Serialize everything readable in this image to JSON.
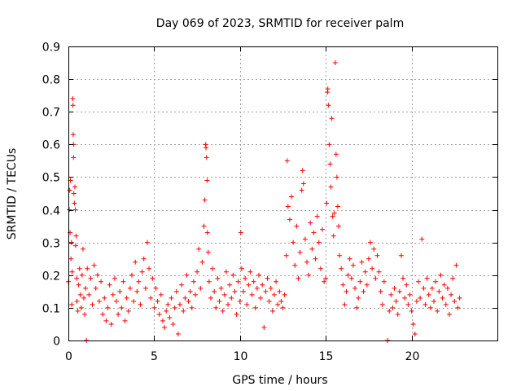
{
  "chart_data": {
    "type": "scatter",
    "title": "Day 069 of 2023, SRMTID for receiver palm",
    "xlabel": "GPS time / hours",
    "ylabel": "SRMTID / TECUs",
    "xlim": [
      0,
      25
    ],
    "ylim": [
      0,
      0.9
    ],
    "x_ticks": [
      {
        "value": 0,
        "label": "0"
      },
      {
        "value": 5,
        "label": "5"
      },
      {
        "value": 10,
        "label": "10"
      },
      {
        "value": 15,
        "label": "15"
      },
      {
        "value": 20,
        "label": "20"
      }
    ],
    "y_ticks": [
      {
        "value": 0,
        "label": "0"
      },
      {
        "value": 0.1,
        "label": "0.1"
      },
      {
        "value": 0.2,
        "label": "0.2"
      },
      {
        "value": 0.3,
        "label": "0.3"
      },
      {
        "value": 0.4,
        "label": "0.4"
      },
      {
        "value": 0.5,
        "label": "0.5"
      },
      {
        "value": 0.6,
        "label": "0.6"
      },
      {
        "value": 0.7,
        "label": "0.7"
      },
      {
        "value": 0.8,
        "label": "0.8"
      },
      {
        "value": 0.9,
        "label": "0.9"
      }
    ],
    "grid": true,
    "marker": "plus",
    "color": "#ff0000",
    "series": [
      {
        "name": "SRMTID",
        "points": [
          [
            0.0,
            0.18
          ],
          [
            0.05,
            0.4
          ],
          [
            0.08,
            0.46
          ],
          [
            0.1,
            0.33
          ],
          [
            0.12,
            0.49
          ],
          [
            0.15,
            0.25
          ],
          [
            0.18,
            0.3
          ],
          [
            0.2,
            0.11
          ],
          [
            0.22,
            0.21
          ],
          [
            0.25,
            0.74
          ],
          [
            0.27,
            0.72
          ],
          [
            0.28,
            0.63
          ],
          [
            0.3,
            0.6
          ],
          [
            0.3,
            0.56
          ],
          [
            0.32,
            0.45
          ],
          [
            0.35,
            0.42
          ],
          [
            0.38,
            0.47
          ],
          [
            0.4,
            0.4
          ],
          [
            0.42,
            0.29
          ],
          [
            0.45,
            0.32
          ],
          [
            0.48,
            0.19
          ],
          [
            0.5,
            0.12
          ],
          [
            0.55,
            0.09
          ],
          [
            0.6,
            0.17
          ],
          [
            0.65,
            0.22
          ],
          [
            0.7,
            0.14
          ],
          [
            0.75,
            0.1
          ],
          [
            0.8,
            0.2
          ],
          [
            0.85,
            0.28
          ],
          [
            0.9,
            0.13
          ],
          [
            0.95,
            0.08
          ],
          [
            1.0,
            0.16
          ],
          [
            1.05,
            0.0
          ],
          [
            1.1,
            0.22
          ],
          [
            1.2,
            0.14
          ],
          [
            1.3,
            0.19
          ],
          [
            1.4,
            0.11
          ],
          [
            1.5,
            0.23
          ],
          [
            1.6,
            0.16
          ],
          [
            1.7,
            0.2
          ],
          [
            1.8,
            0.12
          ],
          [
            1.9,
            0.18
          ],
          [
            2.0,
            0.08
          ],
          [
            2.1,
            0.13
          ],
          [
            2.2,
            0.06
          ],
          [
            2.3,
            0.1
          ],
          [
            2.4,
            0.17
          ],
          [
            2.5,
            0.05
          ],
          [
            2.6,
            0.14
          ],
          [
            2.7,
            0.19
          ],
          [
            2.8,
            0.12
          ],
          [
            2.9,
            0.08
          ],
          [
            3.0,
            0.15
          ],
          [
            3.1,
            0.1
          ],
          [
            3.2,
            0.18
          ],
          [
            3.3,
            0.06
          ],
          [
            3.4,
            0.13
          ],
          [
            3.5,
            0.09
          ],
          [
            3.6,
            0.16
          ],
          [
            3.7,
            0.2
          ],
          [
            3.8,
            0.12
          ],
          [
            3.9,
            0.24
          ],
          [
            4.0,
            0.15
          ],
          [
            4.1,
            0.18
          ],
          [
            4.2,
            0.11
          ],
          [
            4.3,
            0.21
          ],
          [
            4.4,
            0.25
          ],
          [
            4.5,
            0.16
          ],
          [
            4.6,
            0.3
          ],
          [
            4.7,
            0.22
          ],
          [
            4.8,
            0.13
          ],
          [
            4.9,
            0.19
          ],
          [
            5.0,
            0.1
          ],
          [
            5.1,
            0.16
          ],
          [
            5.2,
            0.12
          ],
          [
            5.3,
            0.08
          ],
          [
            5.4,
            0.14
          ],
          [
            5.5,
            0.06
          ],
          [
            5.6,
            0.04
          ],
          [
            5.7,
            0.09
          ],
          [
            5.8,
            0.11
          ],
          [
            5.9,
            0.07
          ],
          [
            6.0,
            0.13
          ],
          [
            6.1,
            0.05
          ],
          [
            6.2,
            0.1
          ],
          [
            6.3,
            0.15
          ],
          [
            6.4,
            0.02
          ],
          [
            6.5,
            0.11
          ],
          [
            6.6,
            0.17
          ],
          [
            6.7,
            0.09
          ],
          [
            6.8,
            0.13
          ],
          [
            6.9,
            0.2
          ],
          [
            7.0,
            0.12
          ],
          [
            7.1,
            0.15
          ],
          [
            7.2,
            0.1
          ],
          [
            7.3,
            0.18
          ],
          [
            7.4,
            0.14
          ],
          [
            7.5,
            0.21
          ],
          [
            7.6,
            0.28
          ],
          [
            7.7,
            0.16
          ],
          [
            7.8,
            0.24
          ],
          [
            7.9,
            0.35
          ],
          [
            7.95,
            0.43
          ],
          [
            8.0,
            0.6
          ],
          [
            8.02,
            0.59
          ],
          [
            8.05,
            0.56
          ],
          [
            8.08,
            0.49
          ],
          [
            8.1,
            0.33
          ],
          [
            8.15,
            0.27
          ],
          [
            8.2,
            0.18
          ],
          [
            8.3,
            0.13
          ],
          [
            8.4,
            0.22
          ],
          [
            8.5,
            0.15
          ],
          [
            8.6,
            0.1
          ],
          [
            8.7,
            0.19
          ],
          [
            8.8,
            0.12
          ],
          [
            8.9,
            0.16
          ],
          [
            9.0,
            0.09
          ],
          [
            9.1,
            0.14
          ],
          [
            9.2,
            0.21
          ],
          [
            9.3,
            0.11
          ],
          [
            9.4,
            0.17
          ],
          [
            9.5,
            0.13
          ],
          [
            9.6,
            0.2
          ],
          [
            9.7,
            0.15
          ],
          [
            9.8,
            0.08
          ],
          [
            9.9,
            0.18
          ],
          [
            10.0,
            0.12
          ],
          [
            10.05,
            0.33
          ],
          [
            10.1,
            0.22
          ],
          [
            10.2,
            0.15
          ],
          [
            10.3,
            0.19
          ],
          [
            10.4,
            0.11
          ],
          [
            10.5,
            0.17
          ],
          [
            10.6,
            0.21
          ],
          [
            10.7,
            0.14
          ],
          [
            10.8,
            0.18
          ],
          [
            10.9,
            0.1
          ],
          [
            11.0,
            0.16
          ],
          [
            11.1,
            0.2
          ],
          [
            11.2,
            0.13
          ],
          [
            11.3,
            0.17
          ],
          [
            11.4,
            0.04
          ],
          [
            11.5,
            0.15
          ],
          [
            11.6,
            0.19
          ],
          [
            11.7,
            0.12
          ],
          [
            11.8,
            0.16
          ],
          [
            11.9,
            0.09
          ],
          [
            12.0,
            0.14
          ],
          [
            12.1,
            0.18
          ],
          [
            12.2,
            0.11
          ],
          [
            12.3,
            0.15
          ],
          [
            12.4,
            0.12
          ],
          [
            12.5,
            0.1
          ],
          [
            12.6,
            0.14
          ],
          [
            12.7,
            0.26
          ],
          [
            12.75,
            0.55
          ],
          [
            12.8,
            0.41
          ],
          [
            12.9,
            0.37
          ],
          [
            13.0,
            0.44
          ],
          [
            13.1,
            0.3
          ],
          [
            13.2,
            0.23
          ],
          [
            13.3,
            0.35
          ],
          [
            13.4,
            0.19
          ],
          [
            13.5,
            0.27
          ],
          [
            13.6,
            0.46
          ],
          [
            13.65,
            0.52
          ],
          [
            13.7,
            0.48
          ],
          [
            13.8,
            0.31
          ],
          [
            13.9,
            0.24
          ],
          [
            14.0,
            0.2
          ],
          [
            14.1,
            0.36
          ],
          [
            14.2,
            0.28
          ],
          [
            14.3,
            0.33
          ],
          [
            14.4,
            0.25
          ],
          [
            14.5,
            0.38
          ],
          [
            14.6,
            0.3
          ],
          [
            14.7,
            0.22
          ],
          [
            14.8,
            0.34
          ],
          [
            14.9,
            0.18
          ],
          [
            15.0,
            0.19
          ],
          [
            15.05,
            0.42
          ],
          [
            15.1,
            0.76
          ],
          [
            15.12,
            0.77
          ],
          [
            15.15,
            0.72
          ],
          [
            15.2,
            0.6
          ],
          [
            15.25,
            0.54
          ],
          [
            15.3,
            0.47
          ],
          [
            15.35,
            0.68
          ],
          [
            15.4,
            0.38
          ],
          [
            15.45,
            0.32
          ],
          [
            15.5,
            0.39
          ],
          [
            15.55,
            0.85
          ],
          [
            15.6,
            0.57
          ],
          [
            15.65,
            0.5
          ],
          [
            15.7,
            0.41
          ],
          [
            15.75,
            0.35
          ],
          [
            15.8,
            0.26
          ],
          [
            15.9,
            0.22
          ],
          [
            16.0,
            0.17
          ],
          [
            16.1,
            0.11
          ],
          [
            16.2,
            0.15
          ],
          [
            16.3,
            0.2
          ],
          [
            16.4,
            0.25
          ],
          [
            16.5,
            0.19
          ],
          [
            16.6,
            0.23
          ],
          [
            16.7,
            0.16
          ],
          [
            16.8,
            0.1
          ],
          [
            16.9,
            0.13
          ],
          [
            17.0,
            0.18
          ],
          [
            17.1,
            0.24
          ],
          [
            17.2,
            0.15
          ],
          [
            17.3,
            0.21
          ],
          [
            17.4,
            0.17
          ],
          [
            17.5,
            0.25
          ],
          [
            17.6,
            0.3
          ],
          [
            17.7,
            0.22
          ],
          [
            17.8,
            0.28
          ],
          [
            17.9,
            0.19
          ],
          [
            18.0,
            0.26
          ],
          [
            18.1,
            0.21
          ],
          [
            18.2,
            0.15
          ],
          [
            18.3,
            0.11
          ],
          [
            18.4,
            0.18
          ],
          [
            18.6,
            0.0
          ],
          [
            18.7,
            0.09
          ],
          [
            18.8,
            0.14
          ],
          [
            18.9,
            0.1
          ],
          [
            19.0,
            0.16
          ],
          [
            19.1,
            0.12
          ],
          [
            19.2,
            0.08
          ],
          [
            19.3,
            0.15
          ],
          [
            19.4,
            0.26
          ],
          [
            19.5,
            0.19
          ],
          [
            19.6,
            0.13
          ],
          [
            19.7,
            0.17
          ],
          [
            19.8,
            0.11
          ],
          [
            19.9,
            0.14
          ],
          [
            20.0,
            0.09
          ],
          [
            20.1,
            0.05
          ],
          [
            20.2,
            0.02
          ],
          [
            20.3,
            0.12
          ],
          [
            20.4,
            0.18
          ],
          [
            20.5,
            0.13
          ],
          [
            20.6,
            0.31
          ],
          [
            20.7,
            0.16
          ],
          [
            20.8,
            0.11
          ],
          [
            20.9,
            0.19
          ],
          [
            21.0,
            0.14
          ],
          [
            21.1,
            0.1
          ],
          [
            21.2,
            0.16
          ],
          [
            21.3,
            0.12
          ],
          [
            21.4,
            0.18
          ],
          [
            21.5,
            0.09
          ],
          [
            21.6,
            0.15
          ],
          [
            21.7,
            0.2
          ],
          [
            21.8,
            0.13
          ],
          [
            21.9,
            0.17
          ],
          [
            22.0,
            0.11
          ],
          [
            22.1,
            0.16
          ],
          [
            22.2,
            0.08
          ],
          [
            22.3,
            0.14
          ],
          [
            22.4,
            0.19
          ],
          [
            22.5,
            0.12
          ],
          [
            22.6,
            0.23
          ],
          [
            22.7,
            0.1
          ],
          [
            22.8,
            0.13
          ]
        ]
      }
    ]
  }
}
